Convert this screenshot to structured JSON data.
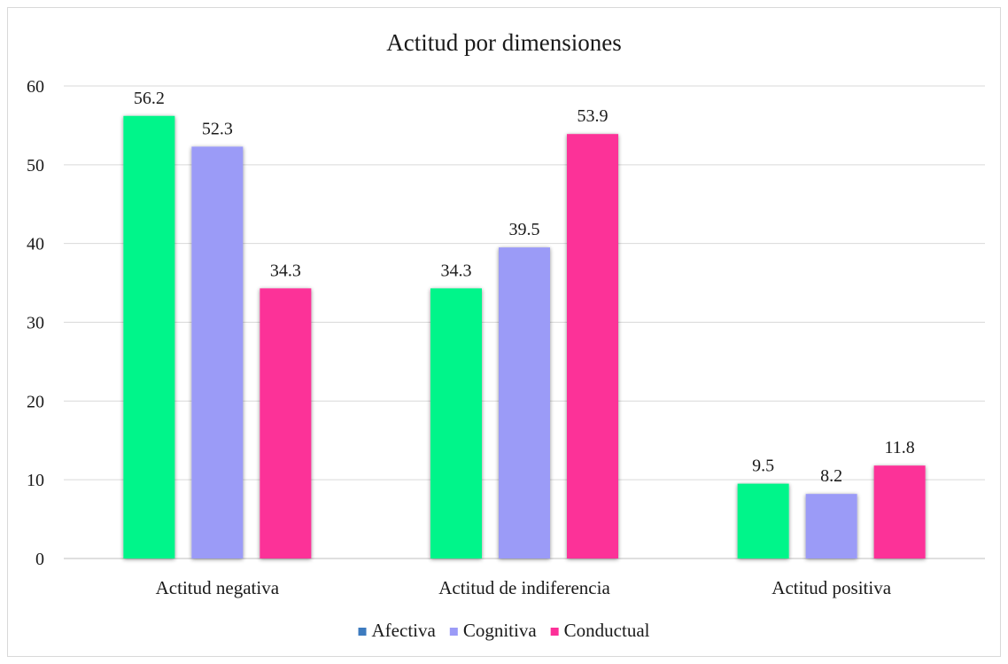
{
  "chart_data": {
    "type": "bar",
    "title": "Actitud por dimensiones",
    "xlabel": "",
    "ylabel": "",
    "categories": [
      "Actitud negativa",
      "Actitud de indiferencia",
      "Actitud positiva"
    ],
    "series": [
      {
        "name": "Afectiva",
        "values": [
          56.2,
          34.3,
          9.5
        ],
        "color": "#00f58a",
        "legend_color": "#3d7bbf"
      },
      {
        "name": "Cognitiva",
        "values": [
          52.3,
          39.5,
          8.2
        ],
        "color": "#9b9bf7",
        "legend_color": "#9b9bf7"
      },
      {
        "name": "Conductual",
        "values": [
          34.3,
          53.9,
          11.8
        ],
        "color": "#fc3098",
        "legend_color": "#fc3098"
      }
    ],
    "ylim": [
      0,
      60
    ],
    "yticks": [
      0,
      10,
      20,
      30,
      40,
      50,
      60
    ],
    "grid": true,
    "legend_position": "bottom",
    "data_labels": true
  }
}
